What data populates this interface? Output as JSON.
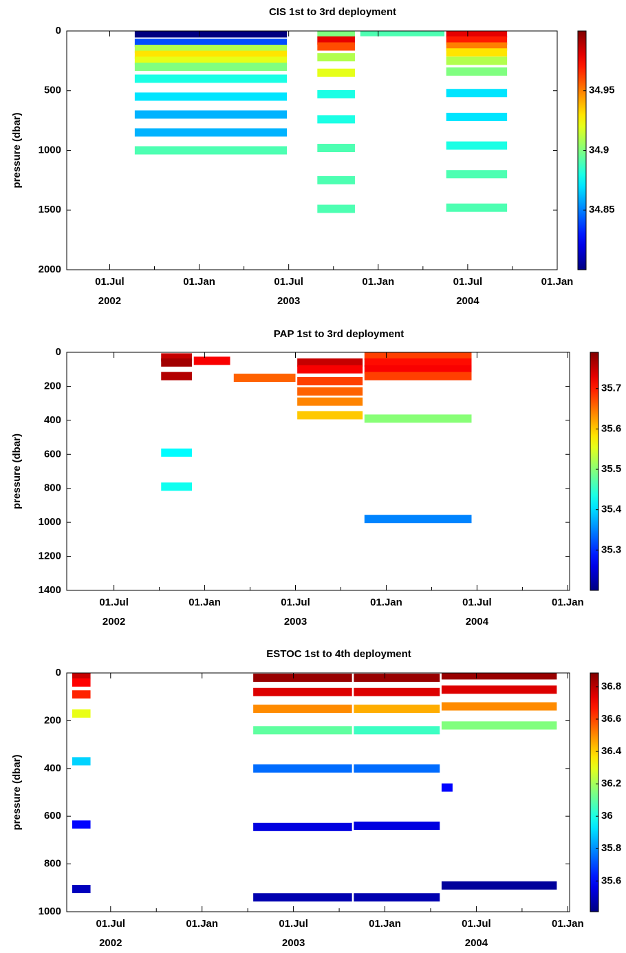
{
  "chart_data": [
    {
      "type": "depth-time",
      "title": "CIS 1st to 3rd deployment",
      "y_label": "pressure (dbar)",
      "colormap": "jet",
      "xlim": [
        2002.26,
        2005.0
      ],
      "ylim": [
        2000,
        0
      ],
      "yticks": [
        0,
        500,
        1000,
        1500,
        2000
      ],
      "xticks": [
        {
          "value": 2002.5,
          "label": "01.Jul"
        },
        {
          "value": 2003.0,
          "label": "01.Jan"
        },
        {
          "value": 2003.5,
          "label": "01.Jul"
        },
        {
          "value": 2004.0,
          "label": "01.Jan"
        },
        {
          "value": 2004.5,
          "label": "01.Jul"
        },
        {
          "value": 2005.0,
          "label": "01.Jan"
        }
      ],
      "year_labels": [
        {
          "value": 2002.5,
          "label": "2002"
        },
        {
          "value": 2003.5,
          "label": "2003"
        },
        {
          "value": 2004.5,
          "label": "2004"
        }
      ],
      "xminorticks": [
        2002.75,
        2003.25,
        2003.75,
        2004.25,
        2004.75
      ],
      "clim": [
        34.8,
        35.0
      ],
      "colorbar_ticks": [
        34.85,
        34.9,
        34.95
      ],
      "segments": [
        {
          "start": 2002.64,
          "end": 2003.49,
          "depth": 20,
          "value": 34.8
        },
        {
          "start": 2002.64,
          "end": 2003.49,
          "depth": 100,
          "value": 34.84
        },
        {
          "start": 2002.64,
          "end": 2003.49,
          "depth": 150,
          "value": 34.91
        },
        {
          "start": 2002.64,
          "end": 2003.49,
          "depth": 200,
          "value": 34.93
        },
        {
          "start": 2002.64,
          "end": 2003.49,
          "depth": 250,
          "value": 34.92
        },
        {
          "start": 2002.64,
          "end": 2003.49,
          "depth": 300,
          "value": 34.9
        },
        {
          "start": 2002.64,
          "end": 2003.49,
          "depth": 400,
          "value": 34.88
        },
        {
          "start": 2002.64,
          "end": 2003.49,
          "depth": 550,
          "value": 34.87
        },
        {
          "start": 2002.64,
          "end": 2003.49,
          "depth": 700,
          "value": 34.86
        },
        {
          "start": 2002.64,
          "end": 2003.49,
          "depth": 850,
          "value": 34.86
        },
        {
          "start": 2002.64,
          "end": 2003.49,
          "depth": 1000,
          "value": 34.89
        },
        {
          "start": 2003.66,
          "end": 2003.87,
          "depth": 20,
          "value": 34.9
        },
        {
          "start": 2003.66,
          "end": 2003.87,
          "depth": 80,
          "value": 34.98
        },
        {
          "start": 2003.66,
          "end": 2003.87,
          "depth": 130,
          "value": 34.96
        },
        {
          "start": 2003.66,
          "end": 2003.87,
          "depth": 220,
          "value": 34.91
        },
        {
          "start": 2003.66,
          "end": 2003.87,
          "depth": 350,
          "value": 34.92
        },
        {
          "start": 2003.66,
          "end": 2003.87,
          "depth": 530,
          "value": 34.88
        },
        {
          "start": 2003.66,
          "end": 2003.87,
          "depth": 740,
          "value": 34.88
        },
        {
          "start": 2003.66,
          "end": 2003.87,
          "depth": 980,
          "value": 34.89
        },
        {
          "start": 2003.66,
          "end": 2003.87,
          "depth": 1250,
          "value": 34.89
        },
        {
          "start": 2003.66,
          "end": 2003.87,
          "depth": 1490,
          "value": 34.89
        },
        {
          "start": 2003.9,
          "end": 2004.37,
          "depth": 10,
          "value": 34.89
        },
        {
          "start": 2004.38,
          "end": 2004.72,
          "depth": 20,
          "value": 34.98
        },
        {
          "start": 2004.38,
          "end": 2004.72,
          "depth": 80,
          "value": 34.97
        },
        {
          "start": 2004.38,
          "end": 2004.72,
          "depth": 130,
          "value": 34.95
        },
        {
          "start": 2004.38,
          "end": 2004.72,
          "depth": 180,
          "value": 34.93
        },
        {
          "start": 2004.38,
          "end": 2004.72,
          "depth": 250,
          "value": 34.91
        },
        {
          "start": 2004.38,
          "end": 2004.72,
          "depth": 340,
          "value": 34.9
        },
        {
          "start": 2004.38,
          "end": 2004.72,
          "depth": 520,
          "value": 34.87
        },
        {
          "start": 2004.38,
          "end": 2004.72,
          "depth": 720,
          "value": 34.87
        },
        {
          "start": 2004.38,
          "end": 2004.72,
          "depth": 960,
          "value": 34.88
        },
        {
          "start": 2004.38,
          "end": 2004.72,
          "depth": 1200,
          "value": 34.89
        },
        {
          "start": 2004.38,
          "end": 2004.72,
          "depth": 1480,
          "value": 34.89
        }
      ]
    },
    {
      "type": "depth-time",
      "title": "PAP 1st to 3rd deployment",
      "y_label": "pressure (dbar)",
      "colormap": "jet",
      "xlim": [
        2002.24,
        2005.01
      ],
      "ylim": [
        1400,
        0
      ],
      "yticks": [
        0,
        200,
        400,
        600,
        800,
        1000,
        1200,
        1400
      ],
      "xticks": [
        {
          "value": 2002.5,
          "label": "01.Jul"
        },
        {
          "value": 2003.0,
          "label": "01.Jan"
        },
        {
          "value": 2003.5,
          "label": "01.Jul"
        },
        {
          "value": 2004.0,
          "label": "01.Jan"
        },
        {
          "value": 2004.5,
          "label": "01.Jul"
        },
        {
          "value": 2005.0,
          "label": "01.Jan"
        }
      ],
      "year_labels": [
        {
          "value": 2002.5,
          "label": "2002"
        },
        {
          "value": 2003.5,
          "label": "2003"
        },
        {
          "value": 2004.5,
          "label": "2004"
        }
      ],
      "xminorticks": [
        2002.75,
        2003.25,
        2003.75,
        2004.25,
        2004.75
      ],
      "clim": [
        35.2,
        35.79
      ],
      "colorbar_ticks": [
        35.3,
        35.4,
        35.5,
        35.6,
        35.7
      ],
      "segments": [
        {
          "start": 2002.76,
          "end": 2002.93,
          "depth": 30,
          "value": 35.75
        },
        {
          "start": 2002.76,
          "end": 2002.93,
          "depth": 60,
          "value": 35.77
        },
        {
          "start": 2002.76,
          "end": 2002.93,
          "depth": 140,
          "value": 35.76
        },
        {
          "start": 2002.76,
          "end": 2002.93,
          "depth": 590,
          "value": 35.42
        },
        {
          "start": 2002.76,
          "end": 2002.93,
          "depth": 790,
          "value": 35.43
        },
        {
          "start": 2002.94,
          "end": 2003.14,
          "depth": 50,
          "value": 35.72
        },
        {
          "start": 2003.16,
          "end": 2003.5,
          "depth": 150,
          "value": 35.66
        },
        {
          "start": 2003.51,
          "end": 2003.87,
          "depth": 60,
          "value": 35.75
        },
        {
          "start": 2003.51,
          "end": 2003.87,
          "depth": 100,
          "value": 35.72
        },
        {
          "start": 2003.51,
          "end": 2003.87,
          "depth": 170,
          "value": 35.68
        },
        {
          "start": 2003.51,
          "end": 2003.87,
          "depth": 230,
          "value": 35.66
        },
        {
          "start": 2003.51,
          "end": 2003.87,
          "depth": 290,
          "value": 35.64
        },
        {
          "start": 2003.51,
          "end": 2003.87,
          "depth": 370,
          "value": 35.6
        },
        {
          "start": 2003.88,
          "end": 2004.47,
          "depth": 20,
          "value": 35.68
        },
        {
          "start": 2003.88,
          "end": 2004.47,
          "depth": 60,
          "value": 35.71
        },
        {
          "start": 2003.88,
          "end": 2004.47,
          "depth": 100,
          "value": 35.72
        },
        {
          "start": 2003.88,
          "end": 2004.47,
          "depth": 140,
          "value": 35.68
        },
        {
          "start": 2003.88,
          "end": 2004.47,
          "depth": 390,
          "value": 35.5
        },
        {
          "start": 2003.88,
          "end": 2004.47,
          "depth": 980,
          "value": 35.35
        }
      ]
    },
    {
      "type": "depth-time",
      "title": "ESTOC 1st to 4th deployment",
      "y_label": "pressure (dbar)",
      "colormap": "jet",
      "xlim": [
        2002.26,
        2005.01
      ],
      "ylim": [
        1000,
        0
      ],
      "yticks": [
        0,
        200,
        400,
        600,
        800,
        1000
      ],
      "xticks": [
        {
          "value": 2002.5,
          "label": "01.Jul"
        },
        {
          "value": 2003.0,
          "label": "01.Jan"
        },
        {
          "value": 2003.5,
          "label": "01.Jul"
        },
        {
          "value": 2004.0,
          "label": "01.Jan"
        },
        {
          "value": 2004.5,
          "label": "01.Jul"
        },
        {
          "value": 2005.0,
          "label": "01.Jan"
        }
      ],
      "year_labels": [
        {
          "value": 2002.5,
          "label": "2002"
        },
        {
          "value": 2003.5,
          "label": "2003"
        },
        {
          "value": 2004.5,
          "label": "2004"
        }
      ],
      "xminorticks": [
        2002.75,
        2003.25,
        2003.75,
        2004.25,
        2004.75
      ],
      "clim": [
        35.41,
        36.885
      ],
      "colorbar_ticks": [
        35.6,
        35.8,
        36,
        36.2,
        36.4,
        36.6,
        36.8
      ],
      "segments": [
        {
          "start": 2002.29,
          "end": 2002.39,
          "depth": 10,
          "value": 36.78
        },
        {
          "start": 2002.29,
          "end": 2002.39,
          "depth": 40,
          "value": 36.7
        },
        {
          "start": 2002.29,
          "end": 2002.39,
          "depth": 90,
          "value": 36.65
        },
        {
          "start": 2002.29,
          "end": 2002.39,
          "depth": 170,
          "value": 36.3
        },
        {
          "start": 2002.29,
          "end": 2002.39,
          "depth": 370,
          "value": 35.9
        },
        {
          "start": 2002.29,
          "end": 2002.39,
          "depth": 635,
          "value": 35.6
        },
        {
          "start": 2002.29,
          "end": 2002.39,
          "depth": 905,
          "value": 35.5
        },
        {
          "start": 2003.28,
          "end": 2003.82,
          "depth": 20,
          "value": 36.85
        },
        {
          "start": 2003.28,
          "end": 2003.82,
          "depth": 80,
          "value": 36.75
        },
        {
          "start": 2003.28,
          "end": 2003.82,
          "depth": 150,
          "value": 36.5
        },
        {
          "start": 2003.28,
          "end": 2003.82,
          "depth": 240,
          "value": 36.1
        },
        {
          "start": 2003.28,
          "end": 2003.82,
          "depth": 400,
          "value": 35.75
        },
        {
          "start": 2003.28,
          "end": 2003.82,
          "depth": 645,
          "value": 35.55
        },
        {
          "start": 2003.28,
          "end": 2003.82,
          "depth": 940,
          "value": 35.48
        },
        {
          "start": 2003.83,
          "end": 2004.3,
          "depth": 20,
          "value": 36.85
        },
        {
          "start": 2003.83,
          "end": 2004.3,
          "depth": 80,
          "value": 36.75
        },
        {
          "start": 2003.83,
          "end": 2004.3,
          "depth": 150,
          "value": 36.45
        },
        {
          "start": 2003.83,
          "end": 2004.3,
          "depth": 240,
          "value": 36.05
        },
        {
          "start": 2003.83,
          "end": 2004.3,
          "depth": 400,
          "value": 35.75
        },
        {
          "start": 2003.83,
          "end": 2004.3,
          "depth": 640,
          "value": 35.55
        },
        {
          "start": 2003.83,
          "end": 2004.3,
          "depth": 940,
          "value": 35.48
        },
        {
          "start": 2004.31,
          "end": 2004.37,
          "depth": 480,
          "value": 35.6
        },
        {
          "start": 2004.31,
          "end": 2004.94,
          "depth": 10,
          "value": 36.85
        },
        {
          "start": 2004.31,
          "end": 2004.94,
          "depth": 70,
          "value": 36.75
        },
        {
          "start": 2004.31,
          "end": 2004.94,
          "depth": 140,
          "value": 36.5
        },
        {
          "start": 2004.31,
          "end": 2004.94,
          "depth": 220,
          "value": 36.15
        },
        {
          "start": 2004.31,
          "end": 2004.94,
          "depth": 890,
          "value": 35.45
        }
      ]
    }
  ]
}
